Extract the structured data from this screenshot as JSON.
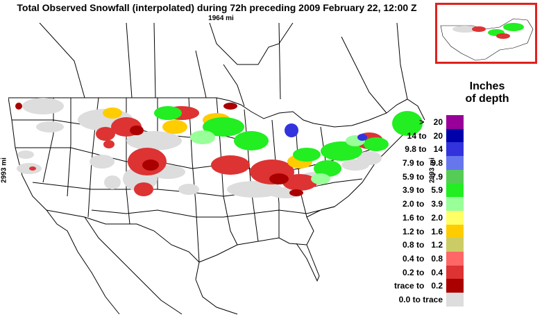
{
  "header": {
    "title": "Total Observed Snowfall (interpolated) during 72h preceding 2009 February 22, 12:00 Z",
    "scale_horizontal": "1964 mi",
    "scale_vertical": "2993 mi"
  },
  "legend": {
    "title_line1": "Inches",
    "title_line2": "of depth",
    "items": [
      {
        "label": ">    20",
        "color": "#990099"
      },
      {
        "label": "14 to   20",
        "color": "#0000aa"
      },
      {
        "label": "9.8 to   14",
        "color": "#3333dd"
      },
      {
        "label": "7.9 to   9.8",
        "color": "#6677ee"
      },
      {
        "label": "5.9 to   7.9",
        "color": "#55cc55"
      },
      {
        "label": "3.9 to   5.9",
        "color": "#22ee22"
      },
      {
        "label": "2.0 to   3.9",
        "color": "#99ff99"
      },
      {
        "label": "1.6 to   2.0",
        "color": "#ffff66"
      },
      {
        "label": "1.2 to   1.6",
        "color": "#ffcc00"
      },
      {
        "label": "0.8 to   1.2",
        "color": "#cccc66"
      },
      {
        "label": "0.4 to   0.8",
        "color": "#ff6666"
      },
      {
        "label": "0.2 to   0.4",
        "color": "#dd3333"
      },
      {
        "label": "trace to   0.2",
        "color": "#aa0000"
      },
      {
        "label": "0.0 to trace",
        "color": "#dddddd"
      }
    ]
  }
}
